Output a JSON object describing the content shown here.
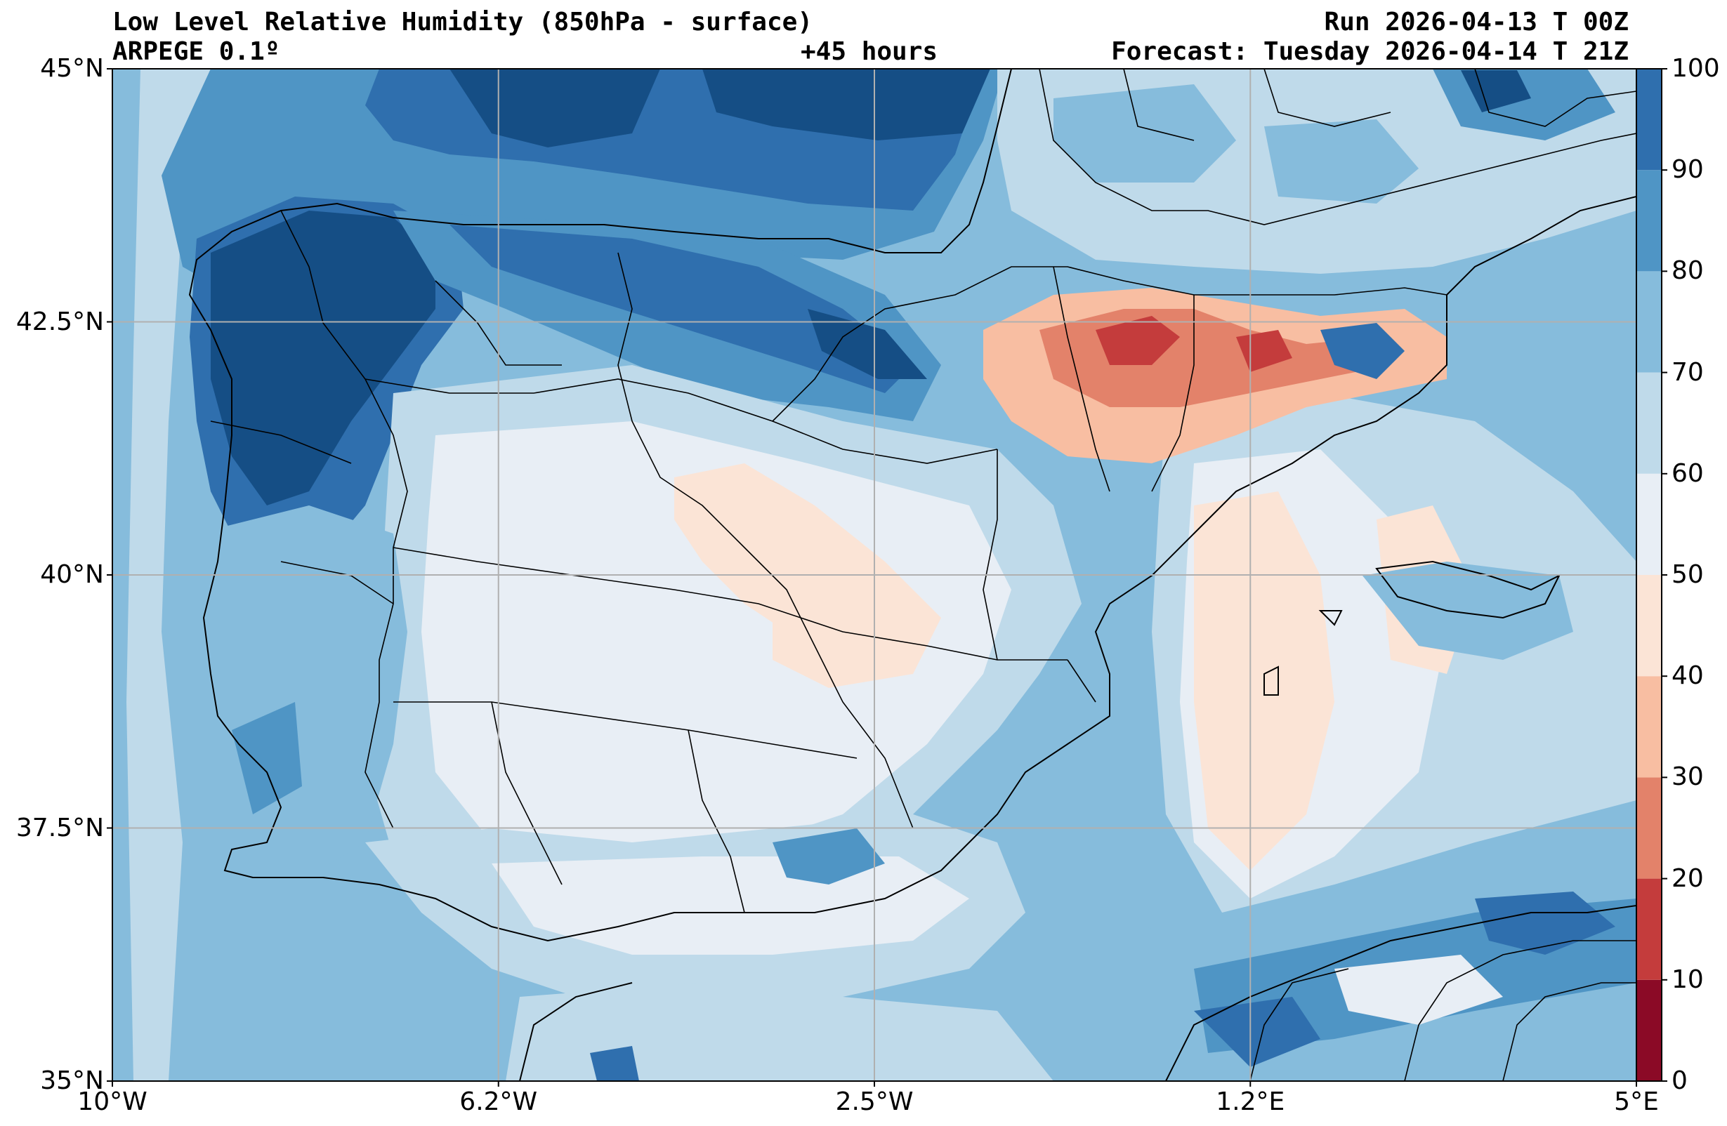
{
  "header": {
    "title": "Low Level Relative Humidity (850hPa - surface)",
    "model": "ARPEGE 0.1º",
    "lead": "+45 hours",
    "run": "Run 2026-04-13 T 00Z",
    "forecast": "Forecast: Tuesday 2026-04-14 T 21Z"
  },
  "axes": {
    "lat_labels": [
      "45°N",
      "42.5°N",
      "40°N",
      "37.5°N",
      "35°N"
    ],
    "lon_labels": [
      "10°W",
      "6.2°W",
      "2.5°W",
      "1.2°E",
      "5°E"
    ],
    "lat_values": [
      45,
      42.5,
      40,
      37.5,
      35
    ],
    "lon_values": [
      -10,
      -6.2,
      -2.5,
      1.2,
      5
    ],
    "lat_range": [
      35,
      45
    ],
    "lon_range": [
      -10,
      5
    ],
    "grid": true
  },
  "colorbar": {
    "ticks": [
      "0",
      "10",
      "20",
      "30",
      "40",
      "50",
      "60",
      "70",
      "80",
      "90",
      "100"
    ],
    "levels": [
      0,
      10,
      20,
      30,
      40,
      50,
      60,
      70,
      80,
      90,
      100
    ],
    "colors": [
      "#8b0a26",
      "#c43c3c",
      "#e3826a",
      "#f8bea2",
      "#fbe4d6",
      "#e8eef5",
      "#bfdaea",
      "#86bcdc",
      "#4f95c5",
      "#2f6fae",
      "#154e85"
    ]
  },
  "field": {
    "variable": "relative humidity",
    "units": "%"
  }
}
